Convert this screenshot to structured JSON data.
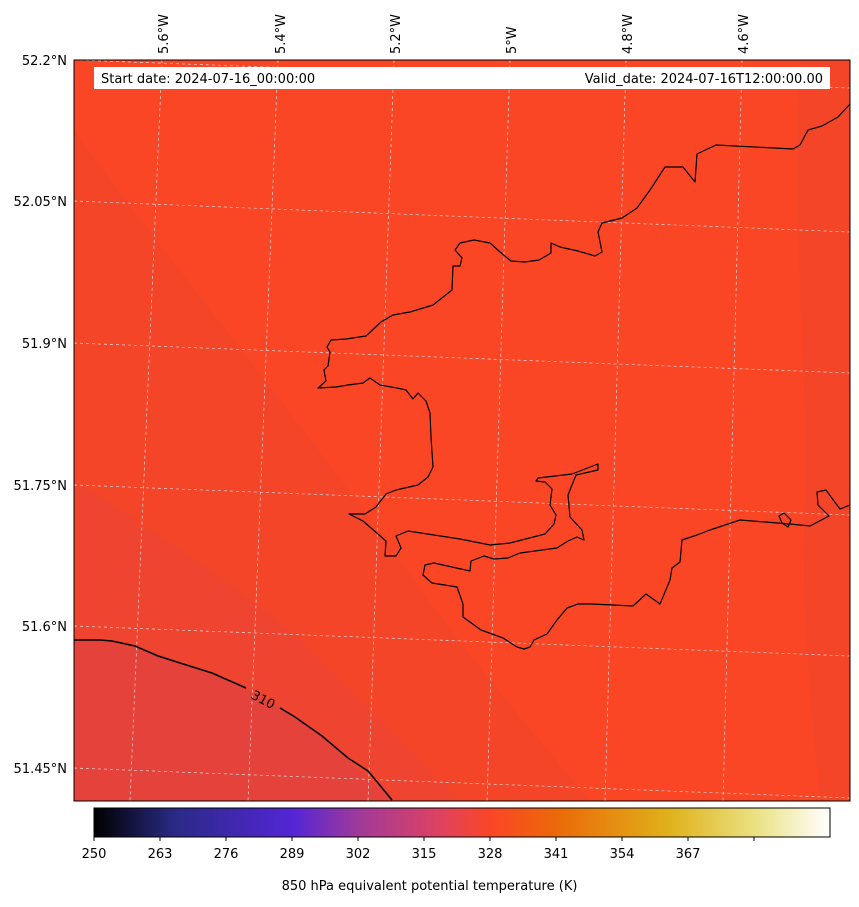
{
  "banner": {
    "start_date": "Start date: 2024-07-16_00:00:00",
    "valid_date": "Valid_date: 2024-07-16T12:00:00.00"
  },
  "map": {
    "lon_ticks": [
      "5.6°W",
      "5.4°W",
      "5.2°W",
      "5°W",
      "4.8°W",
      "4.6°W"
    ],
    "lat_ticks": [
      "52.2°N",
      "52.05°N",
      "51.9°N",
      "51.75°N",
      "51.6°N",
      "51.45°N"
    ],
    "contour_label": "310",
    "colors": {
      "field_main": "#fb4626",
      "field_cooler": "#ef4530",
      "field_coolest": "#e4423a",
      "coastline": "#000000",
      "grid": "#d9d9d9"
    }
  },
  "colorbar": {
    "tick_labels": [
      "250",
      "263",
      "276",
      "289",
      "302",
      "315",
      "328",
      "341",
      "354",
      "367"
    ],
    "label": "850 hPa equivalent potential temperature (K)",
    "colors": [
      "#000000",
      "#2a2a86",
      "#5425d6",
      "#a03a9a",
      "#df4260",
      "#fb4626",
      "#ea6a08",
      "#e0b01a",
      "#eae283",
      "#ffffff"
    ]
  }
}
